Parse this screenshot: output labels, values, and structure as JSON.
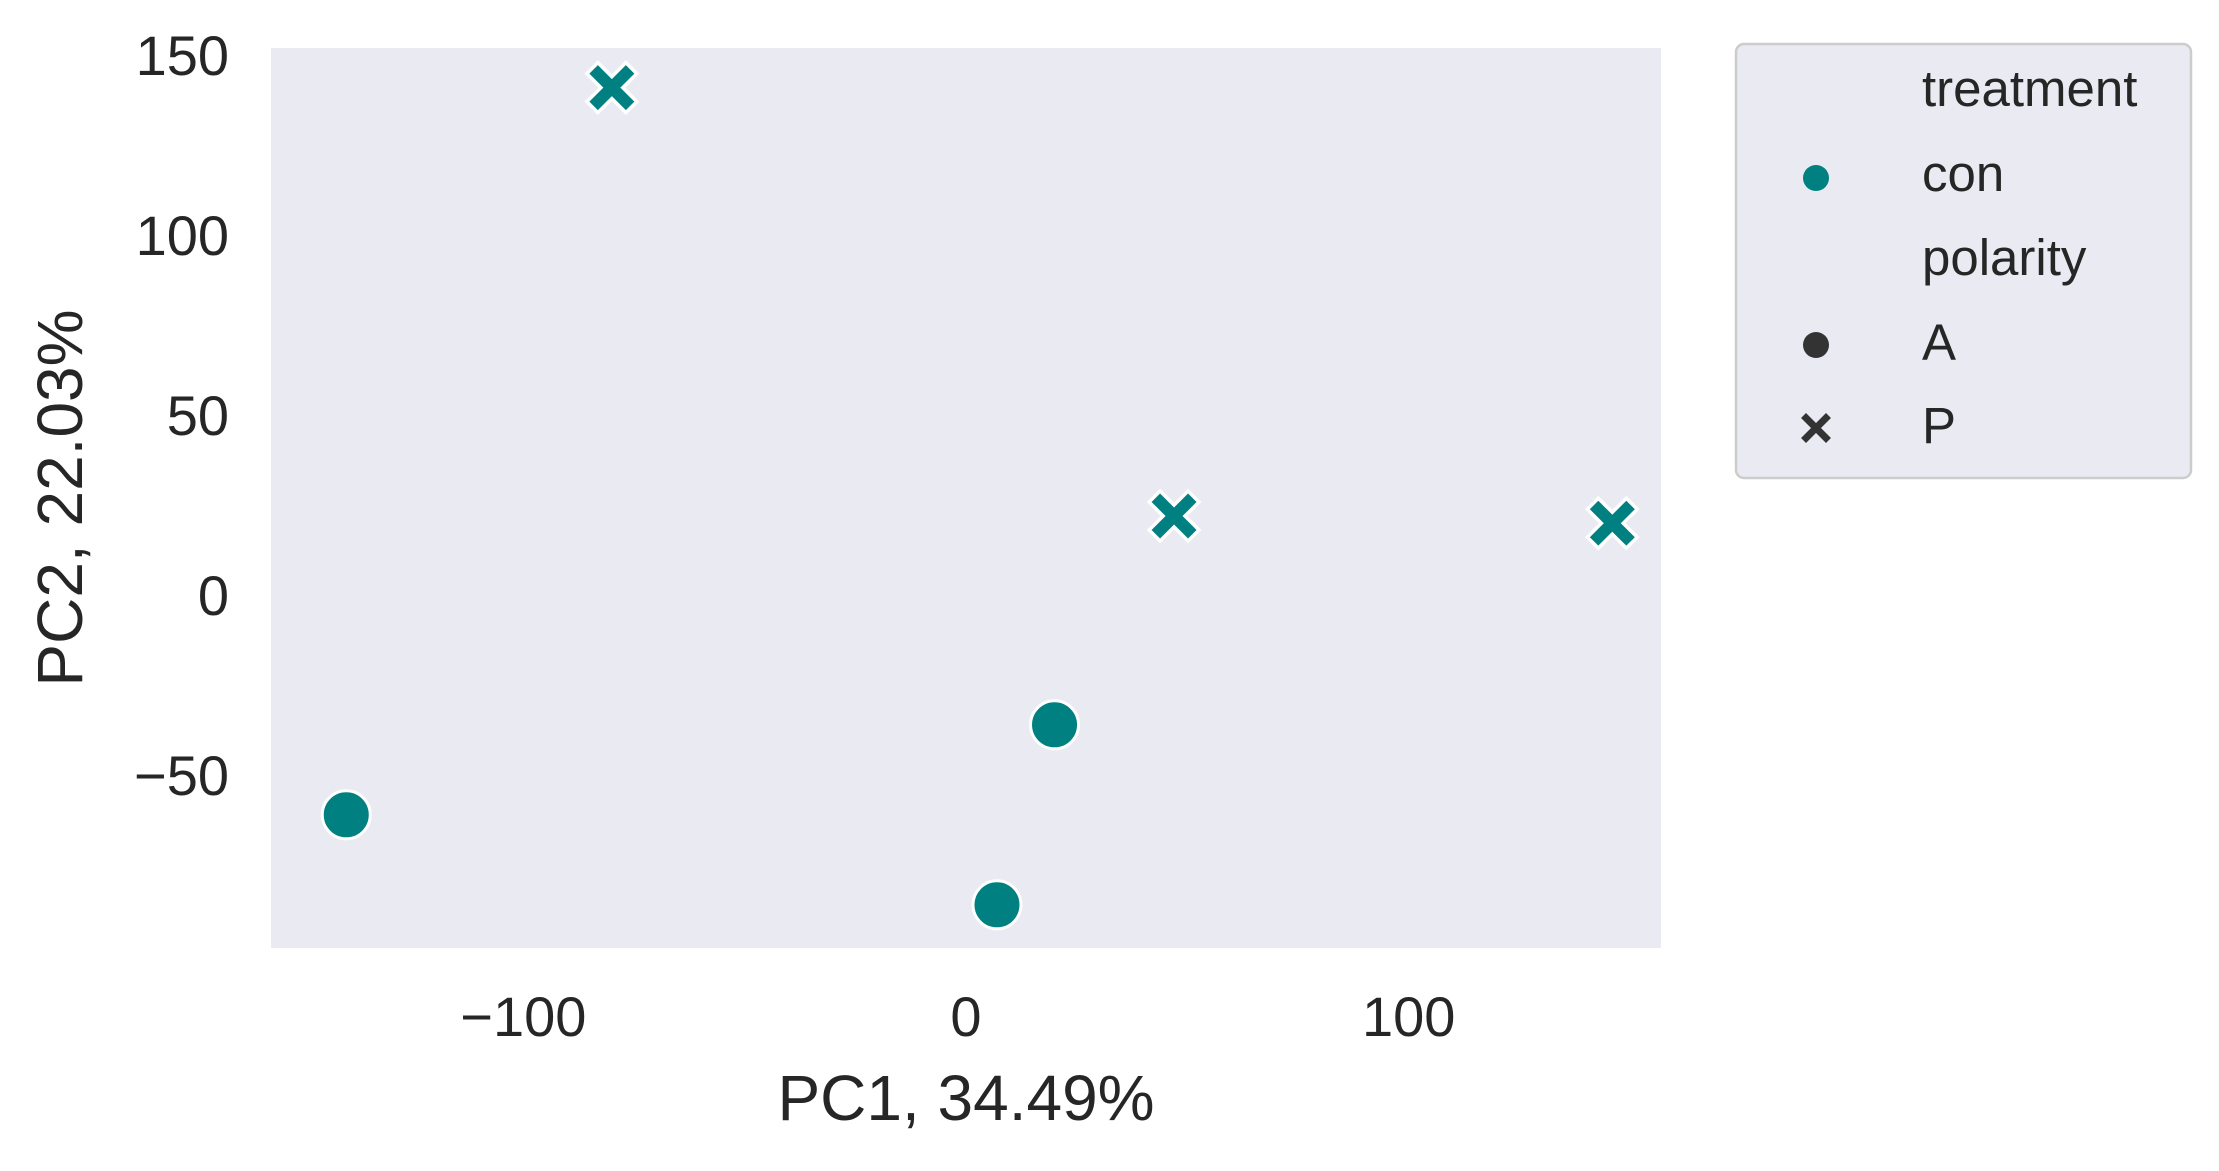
{
  "chart_data": {
    "type": "scatter",
    "xlabel": "PC1, 34.49%",
    "ylabel": "PC2, 22.03%",
    "xlim": [
      -157,
      157
    ],
    "ylim": [
      -98,
      152
    ],
    "xticks": [
      -100,
      0,
      100
    ],
    "xtick_labels": [
      "−100",
      "0",
      "100"
    ],
    "yticks": [
      -50,
      0,
      50,
      100,
      150
    ],
    "ytick_labels": [
      "−50",
      "0",
      "50",
      "100",
      "150"
    ],
    "grid": false,
    "legend_position": "outside-right",
    "colors": {
      "plot_background": "#eaeaf2",
      "con": "#008080",
      "legend_marker": "#333333",
      "text": "#262626"
    },
    "legend": {
      "treatment_title": "treatment",
      "treatment_items": [
        {
          "label": "con",
          "color": "#008080"
        }
      ],
      "polarity_title": "polarity",
      "polarity_items": [
        {
          "label": "A",
          "marker": "circle"
        },
        {
          "label": "P",
          "marker": "x"
        }
      ]
    },
    "points": [
      {
        "x": -140,
        "y": -61,
        "treatment": "con",
        "polarity": "A"
      },
      {
        "x": 7,
        "y": -86,
        "treatment": "con",
        "polarity": "A"
      },
      {
        "x": 20,
        "y": -36,
        "treatment": "con",
        "polarity": "A"
      },
      {
        "x": -80,
        "y": 141,
        "treatment": "con",
        "polarity": "P"
      },
      {
        "x": 47,
        "y": 22,
        "treatment": "con",
        "polarity": "P"
      },
      {
        "x": 146,
        "y": 20,
        "treatment": "con",
        "polarity": "P"
      }
    ]
  }
}
